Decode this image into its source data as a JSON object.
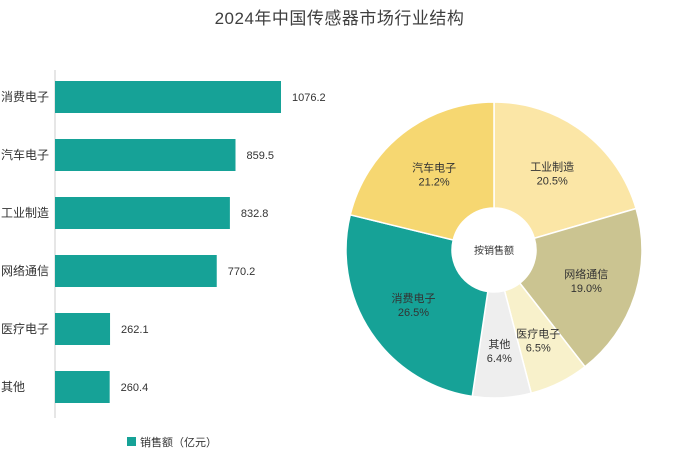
{
  "title": "2024年中国传感器市场行业结构",
  "chart_data": [
    {
      "type": "bar",
      "orientation": "horizontal",
      "categories": [
        "消费电子",
        "汽车电子",
        "工业制造",
        "网络通信",
        "医疗电子",
        "其他"
      ],
      "values": [
        1076.2,
        859.5,
        832.8,
        770.2,
        262.1,
        260.4
      ],
      "value_labels": [
        "1076.2",
        "859.5",
        "832.8",
        "770.2",
        "262.1",
        "260.4"
      ],
      "legend": "销售额（亿元）",
      "color": "#16a297",
      "xlim": [
        0,
        1200
      ]
    },
    {
      "type": "pie",
      "style": "donut",
      "center_label": "按销售额",
      "slices": [
        {
          "label": "工业制造",
          "percent_label": "20.5%",
          "value": 20.5,
          "color": "#fbe6a6"
        },
        {
          "label": "网络通信",
          "percent_label": "19.0%",
          "value": 19.0,
          "color": "#cbc491"
        },
        {
          "label": "医疗电子",
          "percent_label": "6.5%",
          "value": 6.5,
          "color": "#f8f1cb"
        },
        {
          "label": "其他",
          "percent_label": "6.4%",
          "value": 6.4,
          "color": "#eeeeee"
        },
        {
          "label": "消费电子",
          "percent_label": "26.5%",
          "value": 26.5,
          "color": "#16a297"
        },
        {
          "label": "汽车电子",
          "percent_label": "21.2%",
          "value": 21.2,
          "color": "#f6d771"
        }
      ]
    }
  ]
}
